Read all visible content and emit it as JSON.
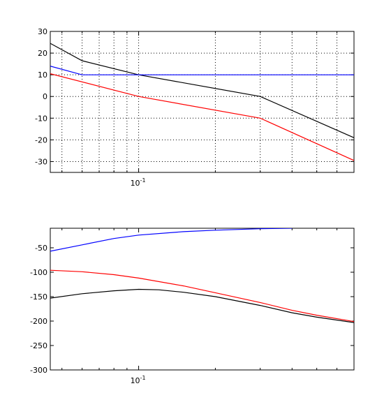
{
  "chart_data": [
    {
      "type": "line",
      "xscale": "log",
      "xlim": [
        0.045,
        0.7
      ],
      "ylim": [
        -35,
        30
      ],
      "grid": true,
      "xtick_label": {
        "base": "10",
        "exponent": "-1"
      },
      "yticks": [
        30,
        20,
        10,
        0,
        -10,
        -20,
        -30
      ],
      "series": [
        {
          "color": "#000000",
          "x": [
            0.045,
            0.06,
            0.1,
            0.3,
            0.7
          ],
          "y": [
            24.5,
            16.5,
            10,
            0,
            -19
          ]
        },
        {
          "color": "#0000ff",
          "x": [
            0.045,
            0.06,
            0.1,
            0.7
          ],
          "y": [
            14,
            10,
            10,
            10
          ]
        },
        {
          "color": "#ff0000",
          "x": [
            0.045,
            0.1,
            0.3,
            0.7
          ],
          "y": [
            10.5,
            0,
            -10,
            -29.5
          ]
        }
      ]
    },
    {
      "type": "line",
      "xscale": "log",
      "xlim": [
        0.045,
        0.7
      ],
      "ylim": [
        -300,
        -10
      ],
      "grid": false,
      "xtick_label": {
        "base": "10",
        "exponent": "-1"
      },
      "yticks": [
        -50,
        -100,
        -150,
        -200,
        -250,
        -300
      ],
      "series": [
        {
          "color": "#0000ff",
          "x": [
            0.045,
            0.06,
            0.08,
            0.1,
            0.15,
            0.2,
            0.3,
            0.4
          ],
          "y": [
            -57,
            -44,
            -31,
            -24,
            -17,
            -14,
            -11,
            -10
          ]
        },
        {
          "color": "#ff0000",
          "x": [
            0.045,
            0.06,
            0.08,
            0.1,
            0.15,
            0.2,
            0.3,
            0.4,
            0.5,
            0.7
          ],
          "y": [
            -96,
            -99,
            -105,
            -112,
            -128,
            -142,
            -162,
            -178,
            -188,
            -201
          ]
        },
        {
          "color": "#000000",
          "x": [
            0.045,
            0.06,
            0.08,
            0.1,
            0.12,
            0.15,
            0.2,
            0.3,
            0.4,
            0.5,
            0.7
          ],
          "y": [
            -153,
            -144,
            -138,
            -135,
            -136,
            -141,
            -150,
            -168,
            -183,
            -192,
            -203
          ]
        }
      ]
    }
  ]
}
